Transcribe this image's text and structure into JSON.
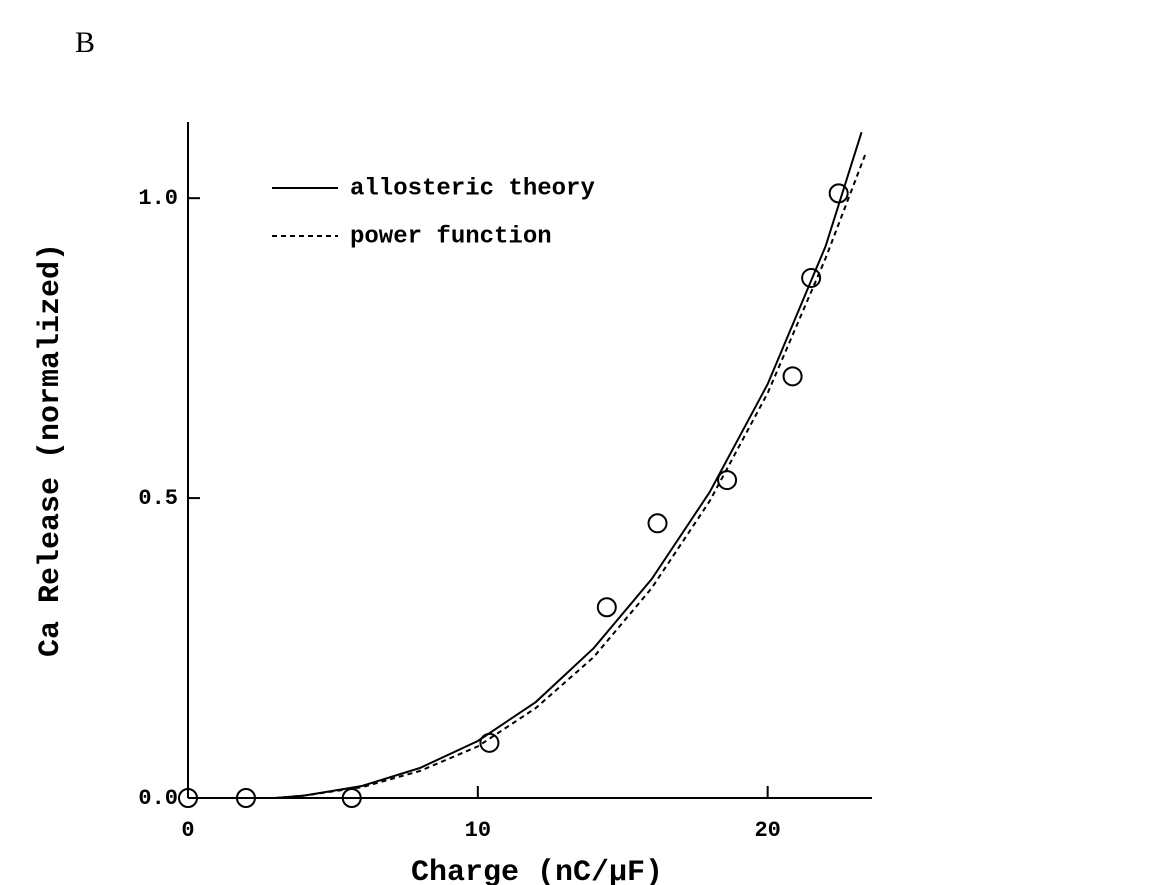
{
  "chart_data": {
    "type": "scatter",
    "panel_label": "B",
    "x_label": "Charge (nC/μF)",
    "y_label": "Ca Release (normalized)",
    "xlim": [
      0,
      23.6
    ],
    "ylim": [
      0,
      1.127
    ],
    "xticks": [
      0,
      10,
      20
    ],
    "yticks": [
      {
        "value": 0,
        "label": "0.0"
      },
      0.5,
      {
        "value": 1,
        "label": "1.0"
      }
    ],
    "legend": "upper-left",
    "series": [
      {
        "name": "allosteric theory",
        "style": "solid",
        "color": "#000000",
        "x": [
          3,
          4,
          6,
          8,
          10,
          12,
          14,
          16,
          18,
          20,
          22,
          23.24
        ],
        "values": [
          0,
          0.004,
          0.02,
          0.05,
          0.095,
          0.16,
          0.25,
          0.365,
          0.51,
          0.69,
          0.92,
          1.11
        ]
      },
      {
        "name": "power function",
        "style": "dashed",
        "color": "#000000",
        "x": [
          3,
          4,
          6,
          8,
          10,
          12,
          14,
          16,
          18,
          20,
          22,
          23.4
        ],
        "values": [
          0,
          0.004,
          0.018,
          0.045,
          0.086,
          0.15,
          0.235,
          0.35,
          0.495,
          0.675,
          0.9,
          1.077
        ]
      },
      {
        "style": "markers",
        "color": "#000000",
        "x": [
          0,
          2.0,
          5.65,
          10.4,
          14.45,
          16.2,
          18.6,
          20.86,
          21.5,
          22.45
        ],
        "values": [
          0,
          0,
          0,
          0.092,
          0.318,
          0.458,
          0.53,
          0.703,
          0.867,
          1.008
        ]
      }
    ]
  }
}
